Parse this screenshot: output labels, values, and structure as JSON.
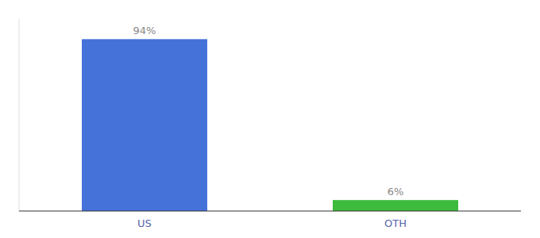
{
  "chart_data": {
    "type": "bar",
    "categories": [
      "US",
      "OTH"
    ],
    "values": [
      94,
      6
    ],
    "value_labels": [
      "94%",
      "6%"
    ],
    "colors": [
      "#4472d9",
      "#3dbb3d"
    ],
    "ylim": [
      0,
      105
    ],
    "data_labels": true,
    "tick_labels": "x",
    "grid": false
  }
}
